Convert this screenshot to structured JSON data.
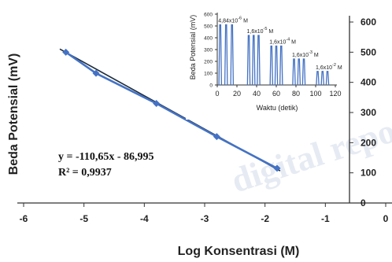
{
  "chart_data": [
    {
      "type": "line",
      "title": "",
      "xlabel": "Log Konsentrasi (M)",
      "ylabel": "Beda Potensial (mV)",
      "xlim": [
        -6,
        0
      ],
      "ylim": [
        0,
        600
      ],
      "xticks": [
        "-6",
        "-5",
        "-4",
        "-3",
        "-2",
        "-1",
        "0"
      ],
      "yticks": [
        "0",
        "100",
        "200",
        "300",
        "400",
        "500",
        "600"
      ],
      "series": [
        {
          "name": "",
          "x": [
            -5.3,
            -4.8,
            -3.8,
            -2.8,
            -1.8
          ],
          "y": [
            500,
            430,
            330,
            220,
            115
          ]
        }
      ],
      "trendline": {
        "x": [
          -5.4,
          -1.75
        ],
        "y": [
          510.5,
          106.6
        ]
      },
      "annotations": {
        "equation": "y = -110,65x - 86,995",
        "r_squared": "R² = 0,9937"
      },
      "grid": false,
      "legend": "none"
    },
    {
      "type": "line",
      "title": "",
      "xlabel": "Waktu (detik)",
      "ylabel": "Beda Potensial (mV)",
      "xlim": [
        0,
        120
      ],
      "ylim": [
        0,
        600
      ],
      "xticks": [
        "0",
        "20",
        "40",
        "60",
        "80",
        "100",
        "120"
      ],
      "yticks": [
        "0",
        "100",
        "200",
        "300",
        "400",
        "500",
        "600"
      ],
      "peak_groups": [
        {
          "label": "4,84x10",
          "exp": "-6",
          "unit": "M",
          "centers": [
            3,
            9,
            15
          ],
          "height": 510
        },
        {
          "label": "1,6x10",
          "exp": "-5",
          "unit": "M",
          "centers": [
            32,
            37,
            42
          ],
          "height": 420
        },
        {
          "label": "1,6x10",
          "exp": "-4",
          "unit": "M",
          "centers": [
            55,
            60,
            65
          ],
          "height": 330
        },
        {
          "label": "1,6x10",
          "exp": "-3",
          "unit": "M",
          "centers": [
            78,
            83,
            88
          ],
          "height": 220
        },
        {
          "label": "1,6x10",
          "exp": "-2",
          "unit": "M",
          "centers": [
            102,
            107,
            112
          ],
          "height": 115
        }
      ],
      "series_color": "#4472c4"
    }
  ],
  "colors": {
    "series": "#4472c4",
    "trendline": "#1f2d3d",
    "axis": "#333333"
  },
  "watermark": "digital repository"
}
